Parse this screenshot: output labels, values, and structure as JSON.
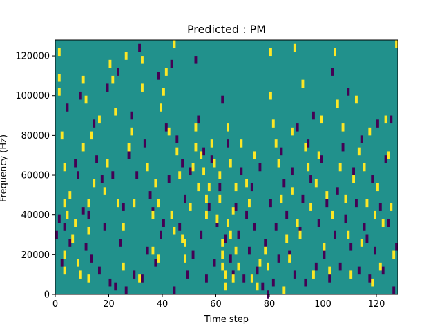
{
  "chart_data": {
    "type": "heatmap",
    "title": "Predicted : PM",
    "xlabel": "Time step",
    "ylabel": "Frequency (Hz)",
    "xlim": [
      0,
      128
    ],
    "ylim": [
      0,
      128000
    ],
    "x_ticks": [
      0,
      20,
      40,
      60,
      80,
      100,
      120
    ],
    "y_ticks": [
      0,
      20000,
      40000,
      60000,
      80000,
      100000,
      120000
    ],
    "n_time_steps": 128,
    "n_freq_bins": 128,
    "colormap": "viridis",
    "colors": {
      "background": "#21918c",
      "high": "#fde725",
      "low": "#440154"
    },
    "high_cells": [
      [
        1,
        122000
      ],
      [
        1,
        109000
      ],
      [
        1,
        102000
      ],
      [
        2,
        80000
      ],
      [
        3,
        64000
      ],
      [
        3,
        46000
      ],
      [
        3,
        20000
      ],
      [
        3,
        12000
      ],
      [
        4,
        40000
      ],
      [
        5,
        50000
      ],
      [
        6,
        28000
      ],
      [
        7,
        36000
      ],
      [
        8,
        16000
      ],
      [
        9,
        10000
      ],
      [
        10,
        74000
      ],
      [
        10,
        108000
      ],
      [
        11,
        98000
      ],
      [
        12,
        46000
      ],
      [
        12,
        32000
      ],
      [
        12,
        8000
      ],
      [
        13,
        80000
      ],
      [
        14,
        56000
      ],
      [
        16,
        88000
      ],
      [
        18,
        52000
      ],
      [
        19,
        66000
      ],
      [
        20,
        116000
      ],
      [
        21,
        108000
      ],
      [
        22,
        92000
      ],
      [
        23,
        46000
      ],
      [
        25,
        34000
      ],
      [
        25,
        14000
      ],
      [
        26,
        120000
      ],
      [
        27,
        74000
      ],
      [
        28,
        82000
      ],
      [
        29,
        46000
      ],
      [
        31,
        8000
      ],
      [
        32,
        118000
      ],
      [
        32,
        104000
      ],
      [
        34,
        64000
      ],
      [
        36,
        40000
      ],
      [
        36,
        22000
      ],
      [
        37,
        56000
      ],
      [
        38,
        46000
      ],
      [
        38,
        18000
      ],
      [
        39,
        94000
      ],
      [
        40,
        102000
      ],
      [
        41,
        112000
      ],
      [
        42,
        82000
      ],
      [
        43,
        40000
      ],
      [
        44,
        126000
      ],
      [
        44,
        32000
      ],
      [
        45,
        72000
      ],
      [
        46,
        60000
      ],
      [
        47,
        28000
      ],
      [
        48,
        26000
      ],
      [
        48,
        18000
      ],
      [
        50,
        44000
      ],
      [
        51,
        64000
      ],
      [
        52,
        74000
      ],
      [
        52,
        84000
      ],
      [
        53,
        54000
      ],
      [
        54,
        70000
      ],
      [
        55,
        62000
      ],
      [
        56,
        48000
      ],
      [
        56,
        40000
      ],
      [
        57,
        54000
      ],
      [
        58,
        76000
      ],
      [
        59,
        66000
      ],
      [
        60,
        38000
      ],
      [
        61,
        60000
      ],
      [
        61,
        48000
      ],
      [
        62,
        26000
      ],
      [
        62,
        20000
      ],
      [
        62,
        14000
      ],
      [
        63,
        10000
      ],
      [
        63,
        4000
      ],
      [
        64,
        84000
      ],
      [
        64,
        36000
      ],
      [
        65,
        66000
      ],
      [
        65,
        30000
      ],
      [
        66,
        42000
      ],
      [
        66,
        8000
      ],
      [
        67,
        54000
      ],
      [
        67,
        22000
      ],
      [
        68,
        14000
      ],
      [
        69,
        76000
      ],
      [
        71,
        56000
      ],
      [
        72,
        46000
      ],
      [
        73,
        8000
      ],
      [
        74,
        70000
      ],
      [
        75,
        4000
      ],
      [
        76,
        16000
      ],
      [
        78,
        22000
      ],
      [
        79,
        14000
      ],
      [
        80,
        122000
      ],
      [
        80,
        100000
      ],
      [
        81,
        86000
      ],
      [
        82,
        76000
      ],
      [
        83,
        66000
      ],
      [
        84,
        48000
      ],
      [
        85,
        2000
      ],
      [
        86,
        28000
      ],
      [
        87,
        18000
      ],
      [
        88,
        82000
      ],
      [
        88,
        52000
      ],
      [
        89,
        124000
      ],
      [
        90,
        36000
      ],
      [
        91,
        30000
      ],
      [
        92,
        106000
      ],
      [
        93,
        74000
      ],
      [
        94,
        64000
      ],
      [
        95,
        44000
      ],
      [
        96,
        10000
      ],
      [
        97,
        56000
      ],
      [
        98,
        70000
      ],
      [
        99,
        88000
      ],
      [
        100,
        24000
      ],
      [
        101,
        50000
      ],
      [
        102,
        12000
      ],
      [
        103,
        40000
      ],
      [
        104,
        122000
      ],
      [
        105,
        96000
      ],
      [
        106,
        64000
      ],
      [
        107,
        84000
      ],
      [
        108,
        48000
      ],
      [
        109,
        30000
      ],
      [
        110,
        10000
      ],
      [
        111,
        58000
      ],
      [
        112,
        98000
      ],
      [
        113,
        72000
      ],
      [
        114,
        26000
      ],
      [
        115,
        64000
      ],
      [
        116,
        46000
      ],
      [
        117,
        82000
      ],
      [
        118,
        6000
      ],
      [
        119,
        40000
      ],
      [
        120,
        54000
      ],
      [
        121,
        14000
      ],
      [
        122,
        36000
      ],
      [
        123,
        88000
      ],
      [
        124,
        70000
      ],
      [
        125,
        44000
      ],
      [
        126,
        20000
      ],
      [
        127,
        126000
      ]
    ],
    "low_cells": [
      [
        0,
        30000
      ],
      [
        1,
        38000
      ],
      [
        2,
        16000
      ],
      [
        3,
        34000
      ],
      [
        4,
        94000
      ],
      [
        5,
        26000
      ],
      [
        7,
        66000
      ],
      [
        8,
        60000
      ],
      [
        9,
        100000
      ],
      [
        10,
        42000
      ],
      [
        11,
        24000
      ],
      [
        12,
        40000
      ],
      [
        13,
        18000
      ],
      [
        14,
        86000
      ],
      [
        15,
        68000
      ],
      [
        16,
        12000
      ],
      [
        17,
        58000
      ],
      [
        18,
        34000
      ],
      [
        19,
        104000
      ],
      [
        20,
        6000
      ],
      [
        21,
        60000
      ],
      [
        22,
        4000
      ],
      [
        23,
        112000
      ],
      [
        24,
        26000
      ],
      [
        25,
        44000
      ],
      [
        26,
        2000
      ],
      [
        27,
        70000
      ],
      [
        28,
        90000
      ],
      [
        29,
        10000
      ],
      [
        30,
        60000
      ],
      [
        31,
        124000
      ],
      [
        32,
        8000
      ],
      [
        33,
        76000
      ],
      [
        34,
        22000
      ],
      [
        35,
        50000
      ],
      [
        36,
        42000
      ],
      [
        37,
        16000
      ],
      [
        38,
        110000
      ],
      [
        39,
        30000
      ],
      [
        40,
        36000
      ],
      [
        41,
        84000
      ],
      [
        42,
        58000
      ],
      [
        43,
        116000
      ],
      [
        44,
        2000
      ],
      [
        45,
        78000
      ],
      [
        46,
        34000
      ],
      [
        47,
        66000
      ],
      [
        48,
        48000
      ],
      [
        49,
        10000
      ],
      [
        50,
        62000
      ],
      [
        51,
        20000
      ],
      [
        52,
        118000
      ],
      [
        53,
        88000
      ],
      [
        54,
        30000
      ],
      [
        55,
        72000
      ],
      [
        56,
        8000
      ],
      [
        57,
        44000
      ],
      [
        58,
        68000
      ],
      [
        59,
        16000
      ],
      [
        60,
        36000
      ],
      [
        61,
        54000
      ],
      [
        62,
        98000
      ],
      [
        63,
        28000
      ],
      [
        64,
        76000
      ],
      [
        65,
        18000
      ],
      [
        66,
        10000
      ],
      [
        67,
        44000
      ],
      [
        68,
        30000
      ],
      [
        69,
        62000
      ],
      [
        70,
        8000
      ],
      [
        71,
        40000
      ],
      [
        72,
        22000
      ],
      [
        73,
        54000
      ],
      [
        74,
        34000
      ],
      [
        75,
        12000
      ],
      [
        76,
        64000
      ],
      [
        77,
        4000
      ],
      [
        78,
        26000
      ],
      [
        79,
        0
      ],
      [
        80,
        46000
      ],
      [
        81,
        6000
      ],
      [
        82,
        34000
      ],
      [
        83,
        18000
      ],
      [
        84,
        72000
      ],
      [
        85,
        56000
      ],
      [
        86,
        40000
      ],
      [
        87,
        20000
      ],
      [
        88,
        62000
      ],
      [
        89,
        10000
      ],
      [
        90,
        84000
      ],
      [
        91,
        32000
      ],
      [
        92,
        48000
      ],
      [
        93,
        6000
      ],
      [
        94,
        76000
      ],
      [
        95,
        58000
      ],
      [
        96,
        90000
      ],
      [
        97,
        14000
      ],
      [
        98,
        36000
      ],
      [
        99,
        68000
      ],
      [
        100,
        20000
      ],
      [
        101,
        46000
      ],
      [
        102,
        8000
      ],
      [
        103,
        112000
      ],
      [
        104,
        30000
      ],
      [
        105,
        52000
      ],
      [
        106,
        14000
      ],
      [
        107,
        74000
      ],
      [
        108,
        38000
      ],
      [
        109,
        102000
      ],
      [
        110,
        24000
      ],
      [
        111,
        62000
      ],
      [
        112,
        46000
      ],
      [
        113,
        12000
      ],
      [
        114,
        78000
      ],
      [
        115,
        34000
      ],
      [
        116,
        28000
      ],
      [
        117,
        8000
      ],
      [
        118,
        58000
      ],
      [
        119,
        22000
      ],
      [
        120,
        86000
      ],
      [
        121,
        44000
      ],
      [
        122,
        12000
      ],
      [
        123,
        68000
      ],
      [
        124,
        36000
      ],
      [
        125,
        88000
      ],
      [
        126,
        2000
      ],
      [
        127,
        24000
      ]
    ]
  }
}
